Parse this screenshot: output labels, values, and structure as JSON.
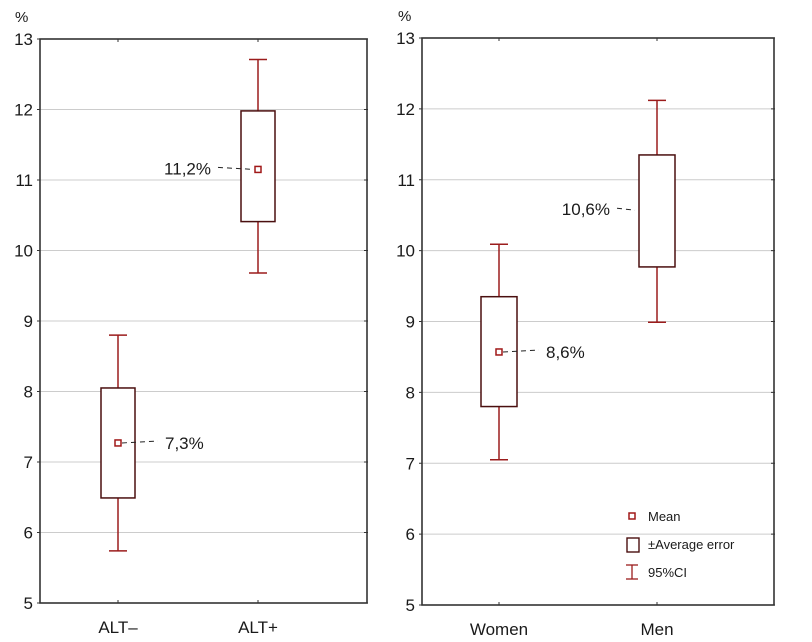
{
  "chart_data": [
    {
      "type": "boxplot",
      "title": "",
      "ylabel": "%",
      "xlabel": "",
      "ylim": [
        5,
        13
      ],
      "yticks": [
        5,
        6,
        7,
        8,
        9,
        10,
        11,
        12,
        13
      ],
      "grid": true,
      "categories": [
        "ALT–",
        "ALT+"
      ],
      "series": [
        {
          "category": "ALT–",
          "mean": 7.27,
          "box_low": 6.49,
          "box_high": 8.05,
          "ci_low": 5.74,
          "ci_high": 8.8,
          "annotation": "7,3%",
          "annotation_side": "right",
          "show_mean": true
        },
        {
          "category": "ALT+",
          "mean": 11.15,
          "box_low": 10.41,
          "box_high": 11.98,
          "ci_low": 9.68,
          "ci_high": 12.71,
          "annotation": "11,2%",
          "annotation_side": "left",
          "show_mean": true
        }
      ]
    },
    {
      "type": "boxplot",
      "title": "",
      "ylabel": "%",
      "xlabel": "",
      "ylim": [
        5,
        13
      ],
      "yticks": [
        5,
        6,
        7,
        8,
        9,
        10,
        11,
        12,
        13
      ],
      "grid": true,
      "categories": [
        "Women",
        "Men"
      ],
      "series": [
        {
          "category": "Women",
          "mean": 8.57,
          "box_low": 7.8,
          "box_high": 9.35,
          "ci_low": 7.05,
          "ci_high": 10.09,
          "annotation": "8,6%",
          "annotation_side": "right",
          "show_mean": true
        },
        {
          "category": "Men",
          "mean": 10.57,
          "box_low": 9.77,
          "box_high": 11.35,
          "ci_low": 8.99,
          "ci_high": 12.12,
          "annotation": "10,6%",
          "annotation_side": "left",
          "show_mean": false
        }
      ],
      "legend": {
        "placement": "bottom-right",
        "items": [
          {
            "symbol": "mean-marker",
            "label": "Mean"
          },
          {
            "symbol": "box",
            "label": "±Average error"
          },
          {
            "symbol": "whisker",
            "label": "95%CI"
          }
        ]
      }
    }
  ],
  "colors": {
    "whisker": "#9b1c1c",
    "box": "#4a0f0f",
    "mean": "#a01818",
    "grid": "#cccccc",
    "axis": "#333333"
  }
}
